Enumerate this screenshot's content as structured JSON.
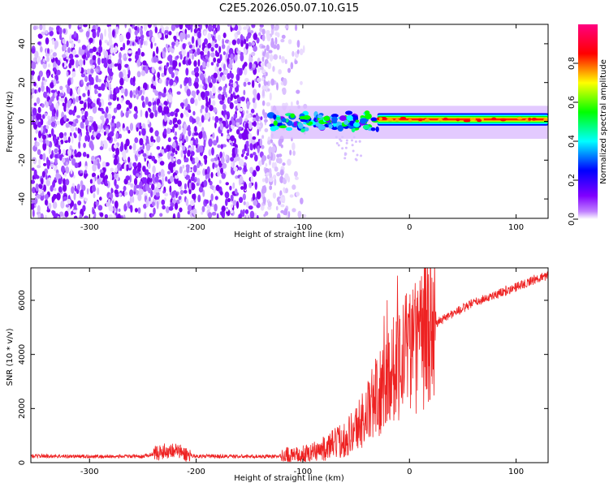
{
  "title": "C2E5.2026.050.07.10.G15",
  "chart_data": [
    {
      "type": "heatmap",
      "title": "C2E5.2026.050.07.10.G15",
      "xlabel": "Height of straight line (km)",
      "ylabel": "Frequency (Hz)",
      "xlim": [
        -355,
        130
      ],
      "ylim": [
        -50,
        50
      ],
      "xticks": [
        -300,
        -200,
        -100,
        0,
        100
      ],
      "yticks": [
        -40,
        -20,
        0,
        20,
        40
      ],
      "colorbar": {
        "label": "Normalized spectral amplitude",
        "range": [
          0,
          1
        ],
        "ticks": [
          0.0,
          0.2,
          0.4,
          0.6,
          0.8
        ],
        "tick_labels": [
          "0.0",
          "0.2",
          "0.4",
          "0.6",
          "0.8"
        ],
        "colormap": [
          "#ffffff",
          "#8000ff",
          "#0000ff",
          "#00ffff",
          "#00ff00",
          "#ffff00",
          "#ff0000",
          "#ff00a0"
        ]
      },
      "regions": [
        {
          "name": "scattered noise",
          "x_range": [
            -355,
            -115
          ],
          "freq_range": [
            -50,
            50
          ],
          "amplitude": 0.05
        },
        {
          "name": "signal band onset",
          "x_range": [
            -130,
            -30
          ],
          "freq_center": 0,
          "freq_halfwidth": 5,
          "amplitude": 0.4
        },
        {
          "name": "stable carrier",
          "x_range": [
            -30,
            130
          ],
          "freq_center": 1,
          "freq_halfwidth": 2,
          "amplitude": 0.95
        }
      ]
    },
    {
      "type": "line",
      "xlabel": "Height of straight line (km)",
      "ylabel": "SNR (10 * v/v)",
      "xlim": [
        -355,
        130
      ],
      "ylim": [
        0,
        7200
      ],
      "xticks": [
        -300,
        -200,
        -100,
        0,
        100
      ],
      "yticks": [
        0,
        2000,
        4000,
        6000
      ],
      "series": [
        {
          "name": "SNR",
          "color": "#ee2222",
          "x": [
            -355,
            -300,
            -250,
            -230,
            -220,
            -210,
            -200,
            -150,
            -120,
            -100,
            -80,
            -60,
            -50,
            -40,
            -30,
            -20,
            -10,
            0,
            10,
            20,
            30,
            40,
            60,
            80,
            100,
            120,
            130
          ],
          "y": [
            250,
            230,
            230,
            420,
            480,
            300,
            240,
            230,
            240,
            280,
            500,
            900,
            1300,
            1800,
            2500,
            3200,
            3900,
            4100,
            4500,
            5000,
            5300,
            5500,
            5900,
            6200,
            6500,
            6800,
            6950
          ]
        }
      ]
    }
  ]
}
